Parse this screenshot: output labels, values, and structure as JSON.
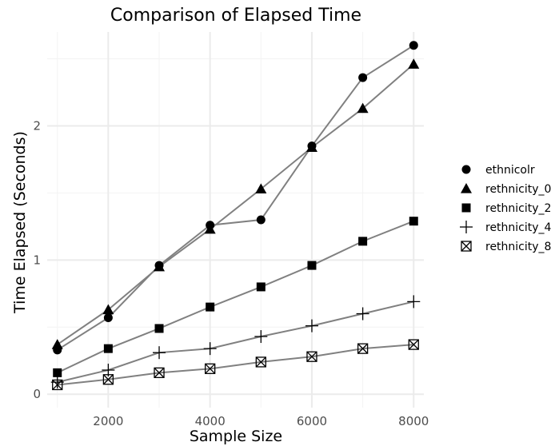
{
  "chart_data": {
    "type": "line",
    "title": "Comparison of Elapsed Time",
    "xlabel": "Sample Size",
    "ylabel": "Time Elapsed (Seconds)",
    "xlim": [
      800,
      8200
    ],
    "ylim": [
      -0.1,
      2.7
    ],
    "xticks": [
      2000,
      4000,
      6000,
      8000
    ],
    "yticks": [
      0,
      1,
      2
    ],
    "grid": true,
    "legend_position": "right",
    "line_color": "#808080",
    "x": [
      1000,
      2000,
      3000,
      4000,
      5000,
      6000,
      7000,
      8000
    ],
    "series": [
      {
        "name": "ethnicolr",
        "marker": "circle",
        "values": [
          0.33,
          0.57,
          0.96,
          1.26,
          1.3,
          1.85,
          2.36,
          2.6
        ]
      },
      {
        "name": "rethnicity_0",
        "marker": "triangle",
        "values": [
          0.37,
          0.63,
          0.95,
          1.23,
          1.53,
          1.84,
          2.13,
          2.46
        ]
      },
      {
        "name": "rethnicity_2",
        "marker": "square",
        "values": [
          0.16,
          0.34,
          0.49,
          0.65,
          0.8,
          0.96,
          1.14,
          1.29
        ]
      },
      {
        "name": "rethnicity_4",
        "marker": "plus",
        "values": [
          0.09,
          0.18,
          0.31,
          0.34,
          0.43,
          0.51,
          0.6,
          0.69
        ]
      },
      {
        "name": "rethnicity_8",
        "marker": "boxed-x",
        "values": [
          0.07,
          0.11,
          0.16,
          0.19,
          0.24,
          0.28,
          0.34,
          0.37
        ]
      }
    ]
  }
}
